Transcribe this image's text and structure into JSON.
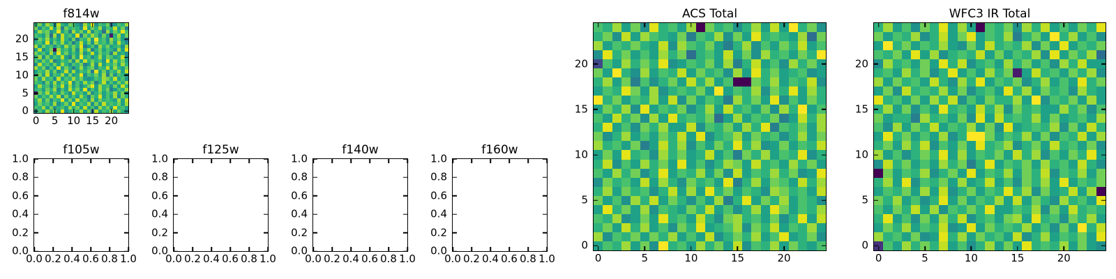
{
  "colors": {
    "background": "#ffffff",
    "axis": "#000000",
    "viridis16": [
      "#440154",
      "#481b6d",
      "#46327e",
      "#3f4889",
      "#365c8d",
      "#2e6e8e",
      "#277f8e",
      "#21918c",
      "#1fa187",
      "#2db27d",
      "#4ac16d",
      "#71cf57",
      "#9fda3a",
      "#c2df23",
      "#e5e419",
      "#fde725"
    ]
  },
  "chart_data": [
    {
      "id": "f814w",
      "type": "heatmap",
      "title": "f814w",
      "colormap": "viridis",
      "grid_size": [
        25,
        25
      ],
      "row_order": "top-to-bottom",
      "xlim": [
        -0.5,
        24.5
      ],
      "ylim": [
        -0.5,
        24.5
      ],
      "xticks": [
        0,
        5,
        10,
        15,
        20
      ],
      "xtick_labels": [
        "0",
        "5",
        "10",
        "15",
        "20"
      ],
      "yticks": [
        0,
        5,
        10,
        15,
        20
      ],
      "ytick_labels": [
        "0",
        "5",
        "10",
        "15",
        "20"
      ],
      "values_hex16_rows": [
        "9b8ca7d98ba86c9e7a9b58a9c",
        "b7a9d8c6b9a97e8b9c7a9d8b6",
        "8cab79e8a6c9b8d7a95c8b9ea",
        "a98b5c7d9a8e6b9ca7b819c8b",
        "7b9c8a8d97b6a9c8f9a7c9b85",
        "9a8e7b9c8a69d8b7c9a8b8d97",
        "c8b9a7a8c9b9e68a7c9b89a7c",
        "8d79b0c9a8b7d9c69b8a97c8e",
        "b9a8c7e9b8a8c79d8b9a6c897",
        "9c7b8a9d86b8f9a79c8ba89d7",
        "a8b9c68a9b7c8d9b9a7e8c9b8",
        "7d9a8b8c97a9b68c7d8a9b8c9",
        "c9b7a8e8b969c8ab7a9d8c98b",
        "8a9c8b79d8c8a9b6e8b7a9c8d",
        "9b8d7a9c8b89e7a9b8c6b7a98",
        "b8c9a7d8a9c9b878a9cb9d8a7",
        "a97b8c8b9e7a8c9b69d8a8b9c",
        "8c9a7b9d8c8a79be8c9a7b8d9",
        "9a8b9c7a8d9b8e7a8c9b68a9c",
        "1b9c8a8b97d9a8c79b8a9c8b7",
        "b8a9c9d7b8a8c96b9e8a8c7b9",
        "9c8b7a9e8b8d9a7c8b9a98c8d",
        "8b9a8c79b8e8a9c7b8d9a9b8c",
        "a9c8b79a8c9b8d8a7c9b8e9a8",
        "7a8c9b8e79a9c8b5d8a9c8b97"
      ]
    },
    {
      "id": "f105w",
      "type": "empty",
      "title": "f105w",
      "xlim": [
        0,
        1
      ],
      "ylim": [
        0,
        1
      ],
      "xticks": [
        0,
        0.2,
        0.4,
        0.6,
        0.8,
        1
      ],
      "xtick_labels": [
        "0.0",
        "0.2",
        "0.4",
        "0.6",
        "0.8",
        "1.0"
      ],
      "yticks": [
        0,
        0.2,
        0.4,
        0.6,
        0.8,
        1
      ],
      "ytick_labels": [
        "0.0",
        "0.2",
        "0.4",
        "0.6",
        "0.8",
        "1.0"
      ]
    },
    {
      "id": "f125w",
      "type": "empty",
      "title": "f125w",
      "xlim": [
        0,
        1
      ],
      "ylim": [
        0,
        1
      ],
      "xticks": [
        0,
        0.2,
        0.4,
        0.6,
        0.8,
        1
      ],
      "xtick_labels": [
        "0.0",
        "0.2",
        "0.4",
        "0.6",
        "0.8",
        "1.0"
      ],
      "yticks": [
        0,
        0.2,
        0.4,
        0.6,
        0.8,
        1
      ],
      "ytick_labels": [
        "0.0",
        "0.2",
        "0.4",
        "0.6",
        "0.8",
        "1.0"
      ]
    },
    {
      "id": "f140w",
      "type": "empty",
      "title": "f140w",
      "xlim": [
        0,
        1
      ],
      "ylim": [
        0,
        1
      ],
      "xticks": [
        0,
        0.2,
        0.4,
        0.6,
        0.8,
        1
      ],
      "xtick_labels": [
        "0.0",
        "0.2",
        "0.4",
        "0.6",
        "0.8",
        "1.0"
      ],
      "yticks": [
        0,
        0.2,
        0.4,
        0.6,
        0.8,
        1
      ],
      "ytick_labels": [
        "0.0",
        "0.2",
        "0.4",
        "0.6",
        "0.8",
        "1.0"
      ]
    },
    {
      "id": "f160w",
      "type": "empty",
      "title": "f160w",
      "xlim": [
        0,
        1
      ],
      "ylim": [
        0,
        1
      ],
      "xticks": [
        0,
        0.2,
        0.4,
        0.6,
        0.8,
        1
      ],
      "xtick_labels": [
        "0.0",
        "0.2",
        "0.4",
        "0.6",
        "0.8",
        "1.0"
      ],
      "yticks": [
        0,
        0.2,
        0.4,
        0.6,
        0.8,
        1
      ],
      "ytick_labels": [
        "0.0",
        "0.2",
        "0.4",
        "0.6",
        "0.8",
        "1.0"
      ]
    },
    {
      "id": "acs_total",
      "type": "heatmap",
      "title": "ACS Total",
      "colormap": "viridis",
      "grid_size": [
        25,
        25
      ],
      "row_order": "top-to-bottom",
      "xlim": [
        -0.5,
        24.5
      ],
      "ylim": [
        -0.5,
        24.5
      ],
      "xticks": [
        0,
        5,
        10,
        15,
        20
      ],
      "xtick_labels": [
        "0",
        "5",
        "10",
        "15",
        "20"
      ],
      "yticks": [
        0,
        5,
        10,
        15,
        20
      ],
      "ytick_labels": [
        "0",
        "5",
        "10",
        "15",
        "20"
      ],
      "values_hex16_rows": [
        "a9c8b7e9a8c0b9a79c8d8f9b7",
        "9b7d8ca98b6a9c7b8e9a98c5b",
        "c8a9b98d7ca9b869c7a8b9d8a",
        "7e9b8a8c9b59a8d8b7c9a8b9f",
        "3a8c9b9e78a9b8c69d8a7c9b8",
        "b8f97c8a9d8b9a7c8e9b89a78",
        "9c8b6a79b8d9c8a00b9c8a9d7",
        "8a9eb8c79a9b8f8a9c7b9e8c9",
        "f9b8a9c8d7b8a96c9b8e7a8b9",
        "8b9c7e8a9b79c8d9a8b7c9f8a",
        "a8d9b7c8e9a9b58c8a9b68d9c",
        "9e8a7b9c88d7a9b8c9e6a9b8c",
        "b79c8a8b9d8e79ac8b9a79c8b",
        "c9a8b68d9c7a8b9e9c78b8a9d",
        "8b8e9a7c9b89d8a6b9c8a9e79",
        "9d7a8c9b8e8a79cb8d9a8c9b8",
        "a8c9b79e8a9c8b7d8a9c9b78e",
        "7b9a8d8c97b9a8e69c8ba8d9c",
        "9c8b9a79d8c8e9b8a97cb9a8d",
        "b8a7c9d8b97a8c69e8b9c8a97",
        "8e9b8c7a98b9d8a79c8eb8a9c",
        "a9c78b8e9a8d97bc9a8b79e8d",
        "9b8d9c8a7b9e89ac7b9d8a9c8",
        "c7a9b8b9c8a8d79b9c8ae89b7",
        "8a9c8b7f9a8c9b8d7a9c8b98a"
      ]
    },
    {
      "id": "wfc3_ir_total",
      "type": "heatmap",
      "title": "WFC3 IR Total",
      "colormap": "viridis",
      "grid_size": [
        25,
        25
      ],
      "row_order": "top-to-bottom",
      "xlim": [
        -0.5,
        24.5
      ],
      "ylim": [
        -0.5,
        24.5
      ],
      "xticks": [
        0,
        5,
        10,
        15,
        20
      ],
      "xtick_labels": [
        "0",
        "5",
        "10",
        "15",
        "20"
      ],
      "yticks": [
        0,
        5,
        10,
        15,
        20
      ],
      "ytick_labels": [
        "0",
        "5",
        "10",
        "15",
        "20"
      ],
      "values_hex16_rows": [
        "9c8a7b9e8c80a9b7c9d8a8b9e",
        "b8a9c79d8be8a9c69b8f9c8a7",
        "8f9b8a9c87b8d9a9c7b8e8a9b",
        "a9b8e8c79a9d8b8a9c7e8b9c5",
        "7c9a8b8e9d79a8c9b8a7c9d88",
        "9a8c9b79e8a8c9b18d9a8b9c7",
        "c8b9a8d97c9e8a9b79c8a8e9b",
        "8b7d9a9c8b79a8e9c8b9a7c98",
        "e9a8b8c9d7a8b99c8f7a9b8c8",
        "9c8b7a8e9a8d9c7b9a88c9b7a",
        "b8996c9a8b7e8d9a9c8b89a8c",
        "a7c8b9d8a9c8b7e89a9c7b8d9",
        "8e9b8a8c79ffb8a9c8b7a9d8c",
        "9b8c9d7a8b8e9ac79b8d9a8b7",
        "c8a79b9e8c8a9b8d9c7a8b9e8",
        "7d9b8a8c9b69e8a9b8c9a8d97",
        "0b8a9c79b8e8a9c8b9d7a9c8b",
        "9c8e7a9b8c89d8a7b9c8e8a9b",
        "8a9b8c8d79b8a9e9c7b89d8c0",
        "b9c8a79e8b8a9c8d8b97c9a8e",
        "a8b9d8c7a9b9e88a9c7b8d9a9",
        "9e8a7b8c9d79a8bc8e9a7b9c8",
        "8b9c8a9d78e8b9a9c8a7b8f9d",
        "c9a8b78e9c8b9a8d79c8a9b8e",
        "2a8c9b9d8a79c8b8e9a9c8b87"
      ]
    }
  ]
}
